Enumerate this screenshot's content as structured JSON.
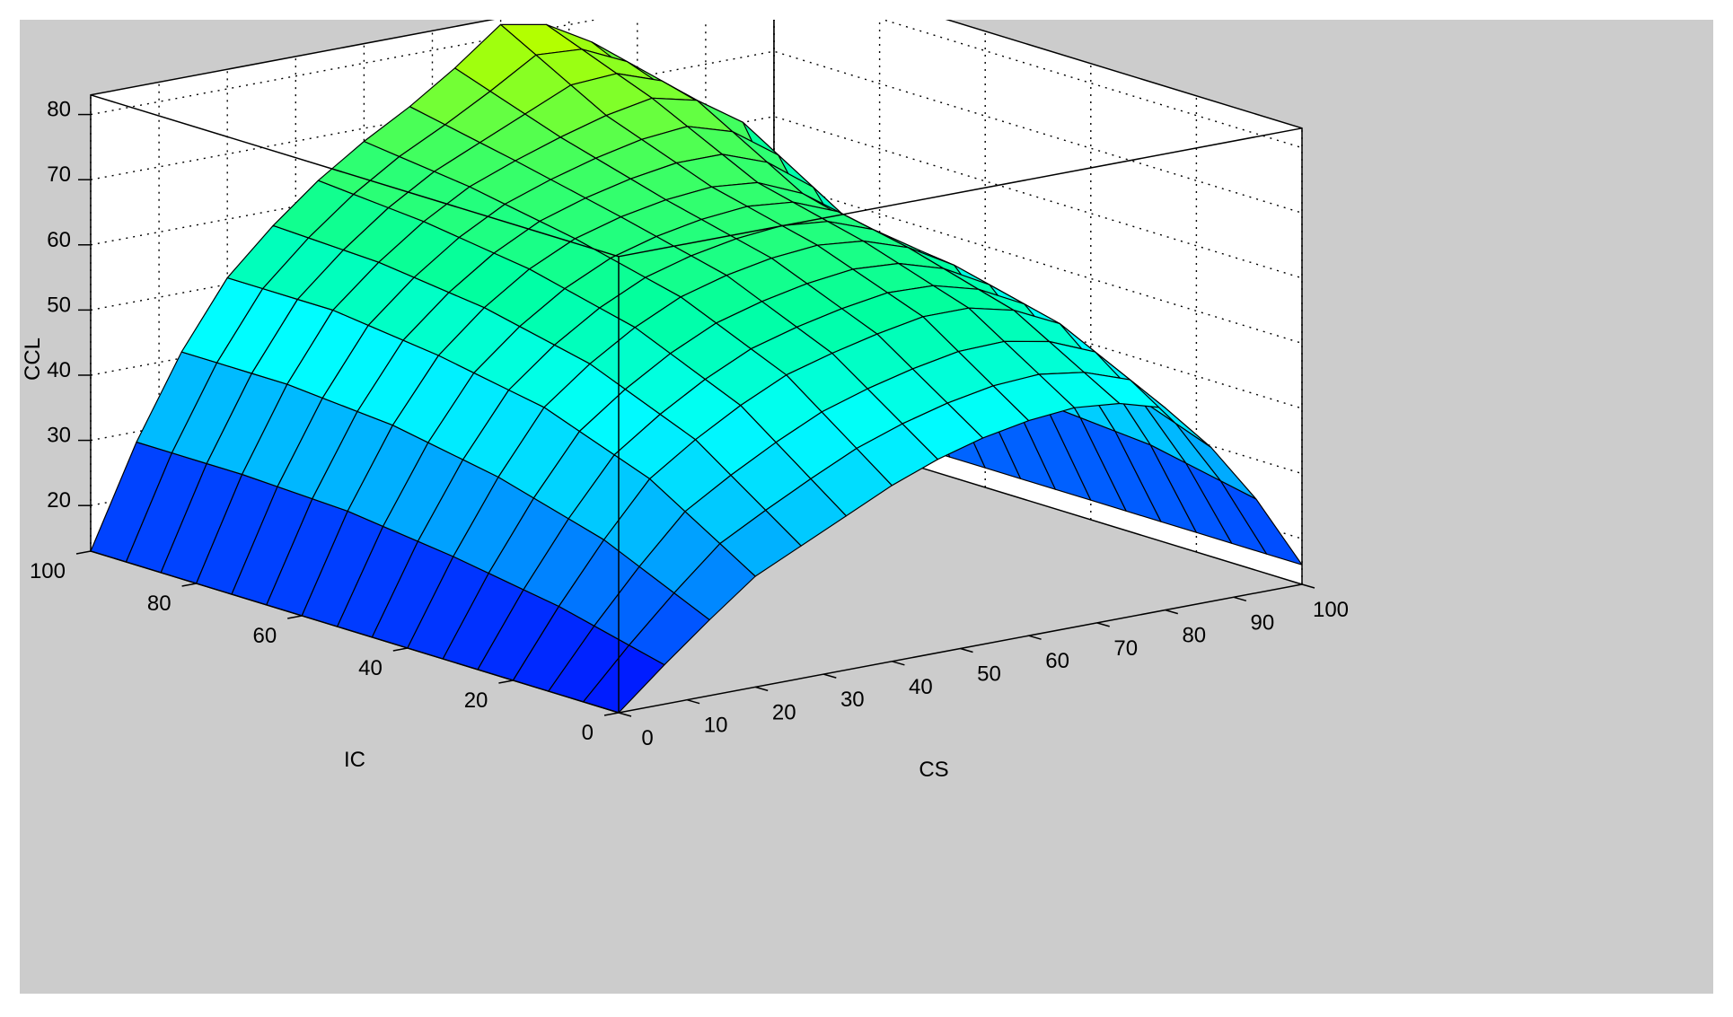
{
  "chart_data": {
    "type": "surface",
    "xlabel": "CS",
    "ylabel": "IC",
    "zlabel": "CCL",
    "x_ticks": [
      0,
      10,
      20,
      30,
      40,
      50,
      60,
      70,
      80,
      90,
      100
    ],
    "y_ticks": [
      0,
      20,
      40,
      60,
      80,
      100
    ],
    "z_ticks": [
      20,
      30,
      40,
      50,
      60,
      70,
      80
    ],
    "xlim": [
      0,
      100
    ],
    "ylim": [
      0,
      100
    ],
    "zlim": [
      13,
      83
    ],
    "grid": true,
    "colormap": [
      "#0000ff",
      "#0060ff",
      "#00c0ff",
      "#00ffff",
      "#00ffa0",
      "#40ff60",
      "#b0ff00",
      "#ffff00"
    ],
    "mesh_x": [
      0,
      6.7,
      13.3,
      20,
      26.7,
      33.3,
      40,
      46.7,
      53.3,
      60,
      66.7,
      73.3,
      80,
      86.7,
      93.3,
      100
    ],
    "mesh_y": [
      0,
      6.7,
      13.3,
      20,
      26.7,
      33.3,
      40,
      46.7,
      53.3,
      60,
      66.7,
      73.3,
      80,
      86.7,
      93.3,
      100
    ],
    "z_anchor_cs": [
      0,
      10,
      20,
      30,
      40,
      50,
      60,
      70,
      80,
      90,
      100
    ],
    "z_anchor_ic": [
      0,
      20,
      40,
      60,
      80,
      100
    ],
    "z_grid": [
      [
        13,
        22,
        30,
        35,
        40,
        44,
        46,
        47,
        44,
        33,
        16
      ],
      [
        13,
        28,
        40,
        47,
        52,
        55,
        57,
        57,
        52,
        38,
        16
      ],
      [
        13,
        32,
        46,
        54,
        59,
        62,
        63,
        62,
        56,
        40,
        16
      ],
      [
        13,
        35,
        49,
        58,
        63,
        66,
        67,
        66,
        58,
        41,
        16
      ],
      [
        13,
        36,
        51,
        60,
        66,
        70,
        73,
        75,
        68,
        44,
        16
      ],
      [
        13,
        36,
        51,
        61,
        68,
        74,
        82,
        80,
        70,
        44,
        16
      ]
    ]
  }
}
